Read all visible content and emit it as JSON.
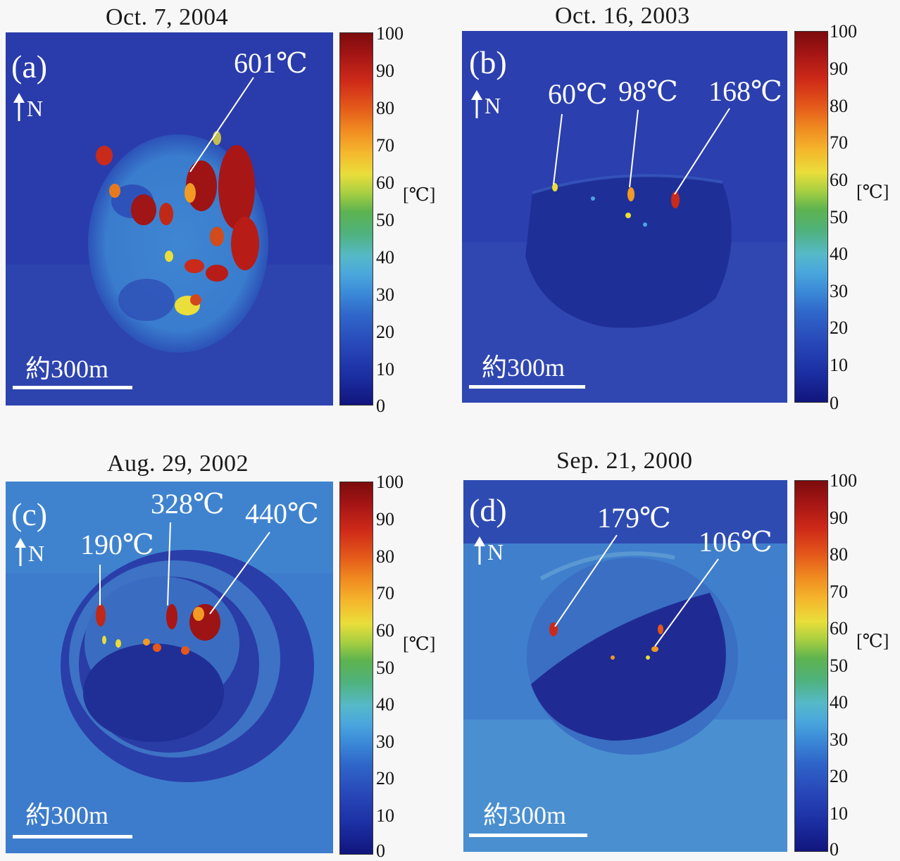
{
  "panels": [
    {
      "id": "a",
      "date": "Oct. 7, 2004",
      "letter": "(a)",
      "north": "N",
      "scale": "約300m",
      "temps": [
        "601℃"
      ]
    },
    {
      "id": "b",
      "date": "Oct. 16, 2003",
      "letter": "(b)",
      "north": "N",
      "scale": "約300m",
      "temps": [
        "60℃",
        "98℃",
        "168℃"
      ]
    },
    {
      "id": "c",
      "date": "Aug. 29, 2002",
      "letter": "(c)",
      "north": "N",
      "scale": "約300m",
      "temps": [
        "190℃",
        "328℃",
        "440℃"
      ]
    },
    {
      "id": "d",
      "date": "Sep. 21, 2000",
      "letter": "(d)",
      "north": "N",
      "scale": "約300m",
      "temps": [
        "179℃",
        "106℃"
      ]
    }
  ],
  "colorbar": {
    "ticks": [
      "100",
      "90",
      "80",
      "70",
      "60",
      "50",
      "40",
      "30",
      "20",
      "10",
      "0"
    ],
    "unit": "[℃]",
    "min": 0,
    "max": 100
  },
  "colors": {
    "cold": "#12157d",
    "background": "#2b3fae",
    "hot": "#7c0c0c"
  }
}
